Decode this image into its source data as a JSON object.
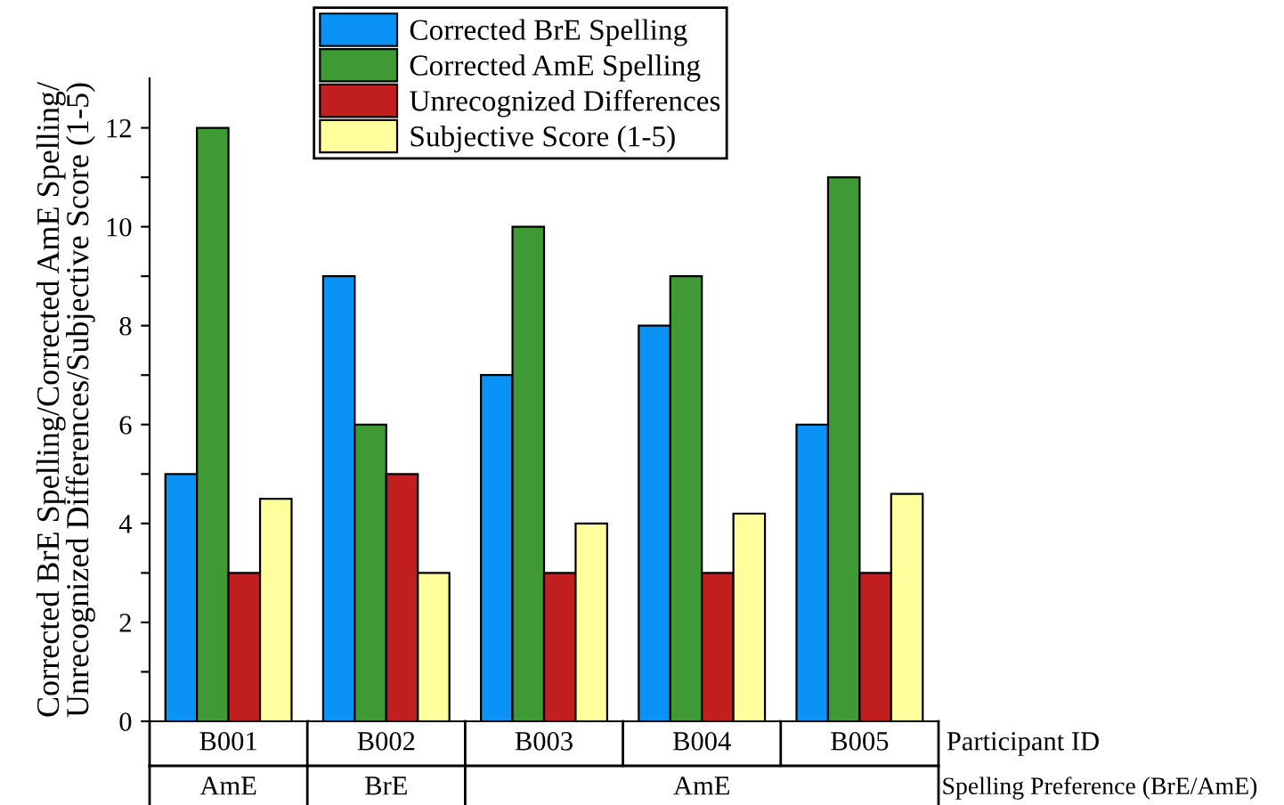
{
  "chart_data": {
    "type": "bar",
    "ylabel": "Corrected BrE Spelling/Corrected AmE Spelling/\nUnrecognized Differences/Subjective Score (1-5)",
    "xlabel": "Participant ID",
    "categories": [
      "B001",
      "B002",
      "B003",
      "B004",
      "B005"
    ],
    "series": [
      {
        "name": "Corrected BrE Spelling",
        "color": "#0a93f5",
        "values": [
          5,
          9,
          7,
          8,
          6
        ]
      },
      {
        "name": "Corrected AmE Spelling",
        "color": "#3f9a36",
        "values": [
          12,
          6,
          10,
          9,
          11
        ]
      },
      {
        "name": "Unrecognized Differences",
        "color": "#c11f1f",
        "values": [
          3,
          5,
          3,
          3,
          3
        ]
      },
      {
        "name": "Subjective Score (1-5)",
        "color": "#ffff9e",
        "values": [
          4.5,
          3,
          4,
          4.2,
          4.6
        ]
      }
    ],
    "ylim": [
      0,
      13
    ],
    "yticks": [
      0,
      {
        "value": 1,
        "label": null
      },
      2,
      {
        "value": 3,
        "label": null
      },
      4,
      {
        "value": 5,
        "label": null
      },
      6,
      {
        "value": 7,
        "label": null
      },
      8,
      {
        "value": 9,
        "label": null
      },
      10,
      {
        "value": 11,
        "label": null
      },
      12
    ],
    "annotations": [
      "AmE",
      "BrE",
      "AmE",
      "Spelling Preference (BrE/AmE)"
    ],
    "legend": "top",
    "grid": false
  }
}
